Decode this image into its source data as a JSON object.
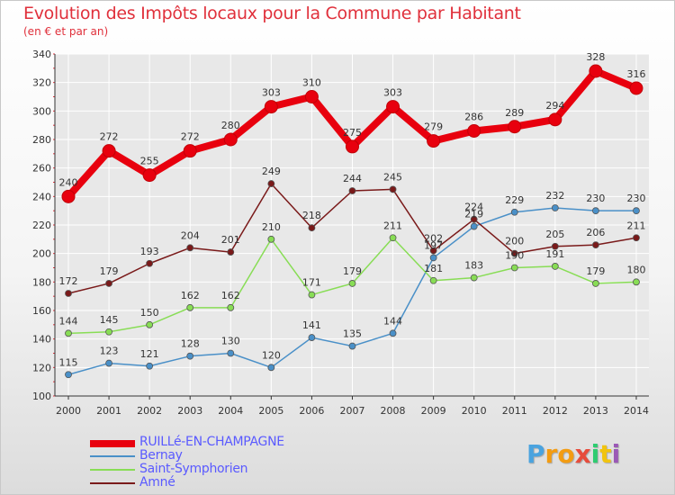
{
  "title": "Evolution des Impôts locaux pour la Commune par Habitant",
  "subtitle": "(en € et par an)",
  "logo": {
    "p": "P",
    "r": "r",
    "o": "o",
    "x": "x",
    "i1": "i",
    "t": "t",
    "i2": "i"
  },
  "colors": {
    "title": "#e0303b",
    "grid": "#ffffff",
    "axis": "#333333",
    "axis_ticks": "#e0303b"
  },
  "chart_data": {
    "type": "line",
    "title": "Evolution des Impôts locaux pour la Commune par Habitant",
    "subtitle": "(en € et par an)",
    "xlabel": "",
    "ylabel": "",
    "ylim": [
      100,
      340
    ],
    "yticks": [
      100,
      120,
      140,
      160,
      180,
      200,
      220,
      240,
      260,
      280,
      300,
      320,
      340
    ],
    "categories": [
      "2000",
      "2001",
      "2002",
      "2003",
      "2004",
      "2005",
      "2006",
      "2007",
      "2008",
      "2009",
      "2010",
      "2011",
      "2012",
      "2013",
      "2014"
    ],
    "series": [
      {
        "name": "RUILLé-EN-CHAMPAGNE",
        "color": "#e8000e",
        "values": [
          240,
          272,
          255,
          272,
          280,
          303,
          310,
          275,
          303,
          279,
          286,
          289,
          294,
          328,
          316
        ]
      },
      {
        "name": "Bernay",
        "color": "#4a90c8",
        "values": [
          115,
          123,
          121,
          128,
          130,
          120,
          141,
          135,
          144,
          197,
          219,
          229,
          232,
          230,
          230
        ]
      },
      {
        "name": "Saint-Symphorien",
        "color": "#88dd55",
        "values": [
          144,
          145,
          150,
          162,
          162,
          210,
          171,
          179,
          211,
          181,
          183,
          190,
          191,
          179,
          180
        ]
      },
      {
        "name": "Amné",
        "color": "#7a1a1a",
        "values": [
          172,
          179,
          193,
          204,
          201,
          249,
          218,
          244,
          245,
          202,
          224,
          200,
          205,
          206,
          211
        ]
      }
    ],
    "data_labels": [
      [
        "240",
        "272",
        "255",
        "272",
        "280",
        "303",
        "310",
        "275",
        "303",
        "279",
        "286",
        "289",
        "294",
        "328",
        "316"
      ],
      [
        "115",
        "123",
        "121",
        "128",
        "130",
        "120",
        "141",
        "135",
        "144",
        "197",
        "219",
        "229",
        "232",
        "230",
        "230"
      ],
      [
        "144",
        "145",
        "150",
        "162",
        "162",
        "210",
        "171",
        "179",
        "211",
        "181",
        "183",
        "190",
        "191",
        "179",
        "180"
      ],
      [
        "172",
        "179",
        "193",
        "204",
        "201",
        "249",
        "218",
        "244",
        "245",
        "202",
        "224",
        "200",
        "205",
        "206",
        "211"
      ]
    ],
    "legend": [
      "RUILLé-EN-CHAMPAGNE",
      "Bernay",
      "Saint-Symphorien",
      "Amné"
    ],
    "legend_position": "bottom-left"
  }
}
